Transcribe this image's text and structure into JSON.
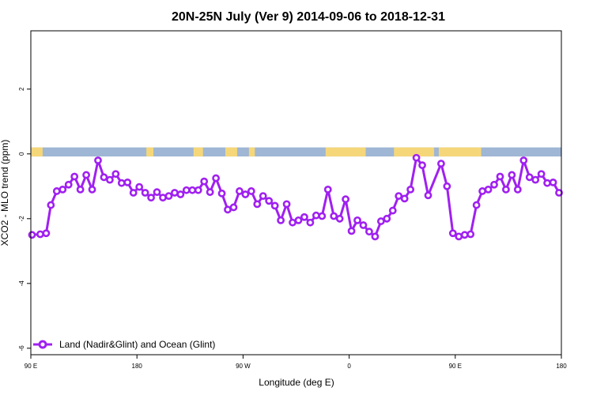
{
  "chart_data": {
    "type": "line",
    "title": "20N-25N July (Ver 9)   2014-09-06 to 2018-12-31",
    "xlabel": "Longitude (deg E)",
    "ylabel": "XCO2 - MLO trend (ppm)",
    "x_ticks": [
      {
        "pos": 90,
        "label": "90 E"
      },
      {
        "pos": 180,
        "label": "180"
      },
      {
        "pos": 270,
        "label": "90 W"
      },
      {
        "pos": 360,
        "label": "0"
      },
      {
        "pos": 450,
        "label": "90 E"
      },
      {
        "pos": 540,
        "label": "180"
      }
    ],
    "y_ticks": [
      {
        "value": -6,
        "label": "-6"
      },
      {
        "value": -4,
        "label": "-4"
      },
      {
        "value": -2,
        "label": "-2"
      },
      {
        "value": 0,
        "label": "0"
      },
      {
        "value": 2,
        "label": "2"
      }
    ],
    "xlim": [
      90,
      540
    ],
    "ylim": [
      -6.2,
      3.8
    ],
    "grid": false,
    "legend_position": "bottom-left",
    "colors": {
      "series": "#a020f0",
      "ocean_band": "#9fb6d4",
      "land_band": "#f5d77a"
    },
    "land_band_segments": [
      [
        90,
        100
      ],
      [
        188,
        194
      ],
      [
        228,
        236
      ],
      [
        255,
        265
      ],
      [
        275,
        280
      ],
      [
        340,
        374
      ],
      [
        398,
        432
      ],
      [
        436,
        472
      ]
    ],
    "series": [
      {
        "name": "Land (Nadir&Glint) and Ocean (Glint)",
        "x": [
          91,
          98,
          103,
          107,
          112,
          117,
          122,
          127,
          132,
          137,
          142,
          147,
          152,
          157,
          162,
          167,
          172,
          177,
          182,
          187,
          192,
          197,
          202,
          207,
          212,
          217,
          222,
          227,
          232,
          237,
          242,
          247,
          252,
          257,
          262,
          267,
          272,
          277,
          282,
          287,
          292,
          297,
          302,
          307,
          312,
          317,
          322,
          327,
          332,
          337,
          342,
          347,
          352,
          357,
          362,
          367,
          372,
          377,
          382,
          387,
          392,
          397,
          402,
          407,
          412,
          417,
          422,
          427,
          438,
          443,
          448,
          453,
          458,
          463,
          468,
          473,
          478,
          483,
          488,
          493,
          498,
          503,
          508,
          513,
          518,
          523,
          528,
          533,
          538
        ],
        "values": [
          -2.5,
          -2.48,
          -2.45,
          -1.58,
          -1.15,
          -1.1,
          -0.95,
          -0.7,
          -1.1,
          -0.65,
          -1.1,
          -0.2,
          -0.72,
          -0.8,
          -0.62,
          -0.9,
          -0.88,
          -1.2,
          -1.02,
          -1.2,
          -1.35,
          -1.18,
          -1.35,
          -1.3,
          -1.2,
          -1.25,
          -1.12,
          -1.12,
          -1.12,
          -0.85,
          -1.18,
          -0.75,
          -1.22,
          -1.72,
          -1.65,
          -1.15,
          -1.25,
          -1.15,
          -1.55,
          -1.3,
          -1.45,
          -1.6,
          -2.05,
          -1.55,
          -2.12,
          -2.05,
          -1.95,
          -2.12,
          -1.9,
          -1.92,
          -1.1,
          -1.92,
          -2.0,
          -1.4,
          -2.38,
          -2.05,
          -2.2,
          -2.4,
          -2.55,
          -2.08,
          -2.0,
          -1.75,
          -1.3,
          -1.38,
          -1.1,
          -0.12,
          -0.35,
          -1.28,
          -0.3,
          -1.0,
          -2.45,
          -2.55,
          -2.5,
          -2.48,
          -1.58,
          -1.15,
          -1.1,
          -0.95,
          -0.7,
          -1.1,
          -0.65,
          -1.1,
          -0.2,
          -0.72,
          -0.8,
          -0.62,
          -0.9,
          -0.88,
          -1.2
        ]
      }
    ]
  }
}
